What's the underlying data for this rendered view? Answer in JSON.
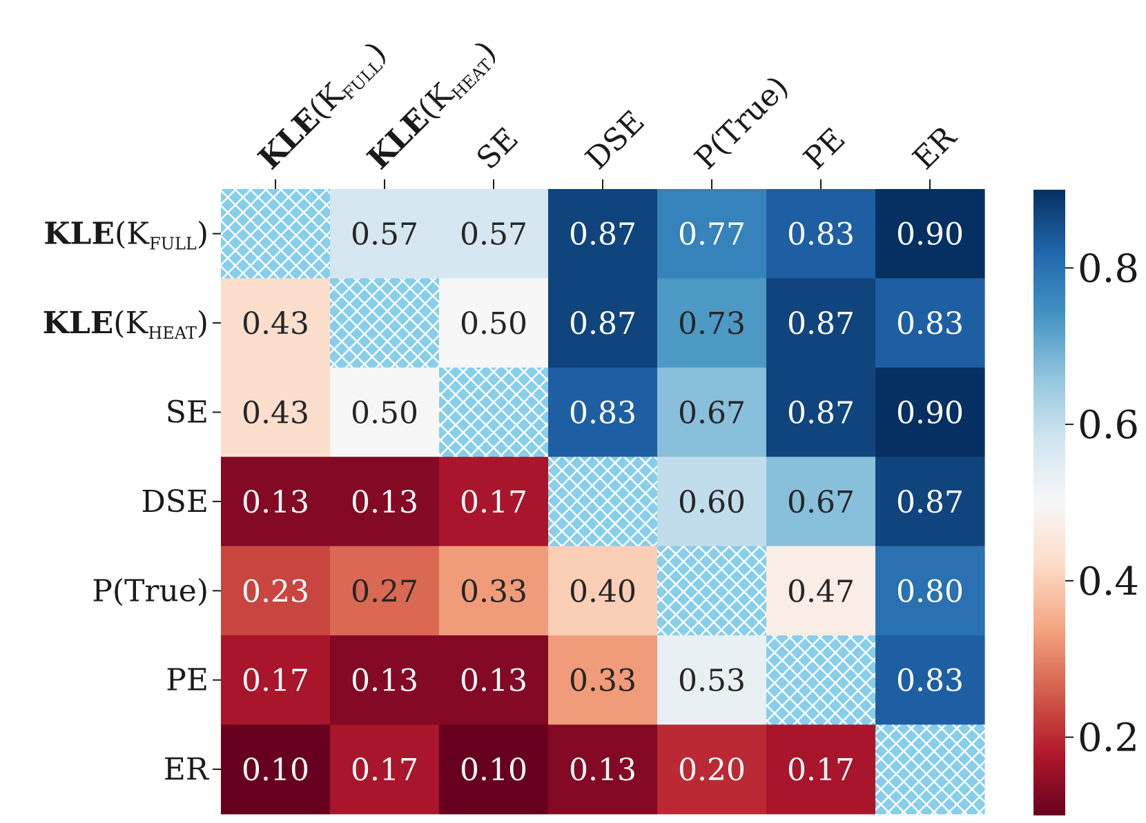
{
  "chart_data": {
    "type": "heatmap",
    "title": "",
    "rows": [
      {
        "main": "KLE",
        "sub": "FULL",
        "plain": ""
      },
      {
        "main": "KLE",
        "sub": "HEAT",
        "plain": ""
      },
      {
        "main": "",
        "sub": "",
        "plain": "SE"
      },
      {
        "main": "",
        "sub": "",
        "plain": "DSE"
      },
      {
        "main": "",
        "sub": "",
        "plain": "P(True)"
      },
      {
        "main": "",
        "sub": "",
        "plain": "PE"
      },
      {
        "main": "",
        "sub": "",
        "plain": "ER"
      }
    ],
    "columns": [
      {
        "main": "KLE",
        "sub": "FULL",
        "plain": ""
      },
      {
        "main": "KLE",
        "sub": "HEAT",
        "plain": ""
      },
      {
        "main": "",
        "sub": "",
        "plain": "SE"
      },
      {
        "main": "",
        "sub": "",
        "plain": "DSE"
      },
      {
        "main": "",
        "sub": "",
        "plain": "P(True)"
      },
      {
        "main": "",
        "sub": "",
        "plain": "PE"
      },
      {
        "main": "",
        "sub": "",
        "plain": "ER"
      }
    ],
    "kernel_letter": "K",
    "values": [
      [
        null,
        0.57,
        0.57,
        0.87,
        0.77,
        0.83,
        0.9
      ],
      [
        0.43,
        null,
        0.5,
        0.87,
        0.73,
        0.87,
        0.83
      ],
      [
        0.43,
        0.5,
        null,
        0.83,
        0.67,
        0.87,
        0.9
      ],
      [
        0.13,
        0.13,
        0.17,
        null,
        0.6,
        0.67,
        0.87
      ],
      [
        0.23,
        0.27,
        0.33,
        0.4,
        null,
        0.47,
        0.8
      ],
      [
        0.17,
        0.13,
        0.13,
        0.33,
        0.53,
        null,
        0.83
      ],
      [
        0.1,
        0.17,
        0.1,
        0.13,
        0.2,
        0.17,
        null
      ]
    ],
    "labels": [
      [
        "",
        "0.57",
        "0.57",
        "0.87",
        "0.77",
        "0.83",
        "0.90"
      ],
      [
        "0.43",
        "",
        "0.50",
        "0.87",
        "0.73",
        "0.87",
        "0.83"
      ],
      [
        "0.43",
        "0.50",
        "",
        "0.83",
        "0.67",
        "0.87",
        "0.90"
      ],
      [
        "0.13",
        "0.13",
        "0.17",
        "",
        "0.60",
        "0.67",
        "0.87"
      ],
      [
        "0.23",
        "0.27",
        "0.33",
        "0.40",
        "",
        "0.47",
        "0.80"
      ],
      [
        "0.17",
        "0.13",
        "0.13",
        "0.33",
        "0.53",
        "",
        "0.83"
      ],
      [
        "0.10",
        "0.17",
        "0.10",
        "0.13",
        "0.20",
        "0.17",
        ""
      ]
    ],
    "colormap": "RdBu",
    "vmin": 0.1,
    "vmax": 0.9,
    "colorbar": {
      "ticks": [
        0.2,
        0.4,
        0.6,
        0.8
      ],
      "tick_labels": [
        "0.2",
        "0.4",
        "0.6",
        "0.8"
      ]
    },
    "diagonal": "hatched",
    "xlabel": "",
    "ylabel": "",
    "grid": false
  },
  "colors": {
    "hatch_bg": "#87CEEB",
    "hatch_line": "#ffffff",
    "text_dark": "#262626",
    "text_light": "#ffffff",
    "colormap_stops": [
      "#67001f",
      "#b2182b",
      "#d6604d",
      "#f4a582",
      "#fddbc7",
      "#f7f7f7",
      "#d1e5f0",
      "#92c5de",
      "#4393c3",
      "#2166ac",
      "#053061"
    ]
  }
}
